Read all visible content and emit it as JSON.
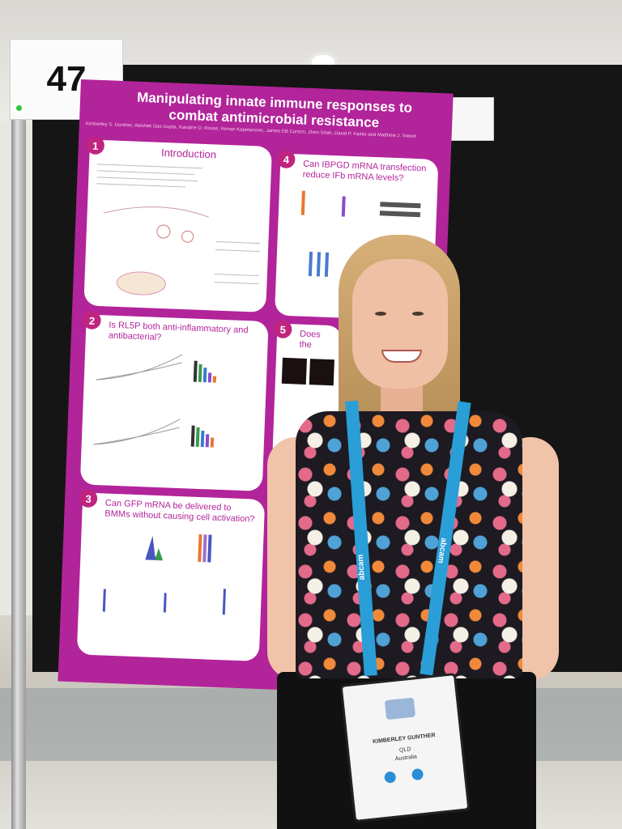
{
  "poster_number": "47",
  "poster": {
    "title_line1": "Manipulating innate immune responses to",
    "title_line2": "combat antimicrobial resistance",
    "authors": "Kimberley S. Gunther, Abishek Das Gupta, Kandine D. Rouse, Renan Kapetanovic, James EB Curson, Zhen Shah, David P. Fairlie and Matthew J. Sweet",
    "panels": [
      {
        "num": "1",
        "heading": "Introduction"
      },
      {
        "num": "2",
        "heading": "Is RL5P both anti-inflammatory and antibacterial?"
      },
      {
        "num": "3",
        "heading": "Can GFP mRNA be delivered to BMMs without causing cell activation?"
      },
      {
        "num": "4",
        "heading": "Can IBPGD mRNA transfection reduce IFb mRNA levels?"
      },
      {
        "num": "5",
        "heading": "Does the"
      }
    ]
  },
  "lanyard_text": "abcam",
  "badge": {
    "name": "KIMBERLEY GUNTHER",
    "line2": "QLD",
    "line3": "Australia"
  }
}
